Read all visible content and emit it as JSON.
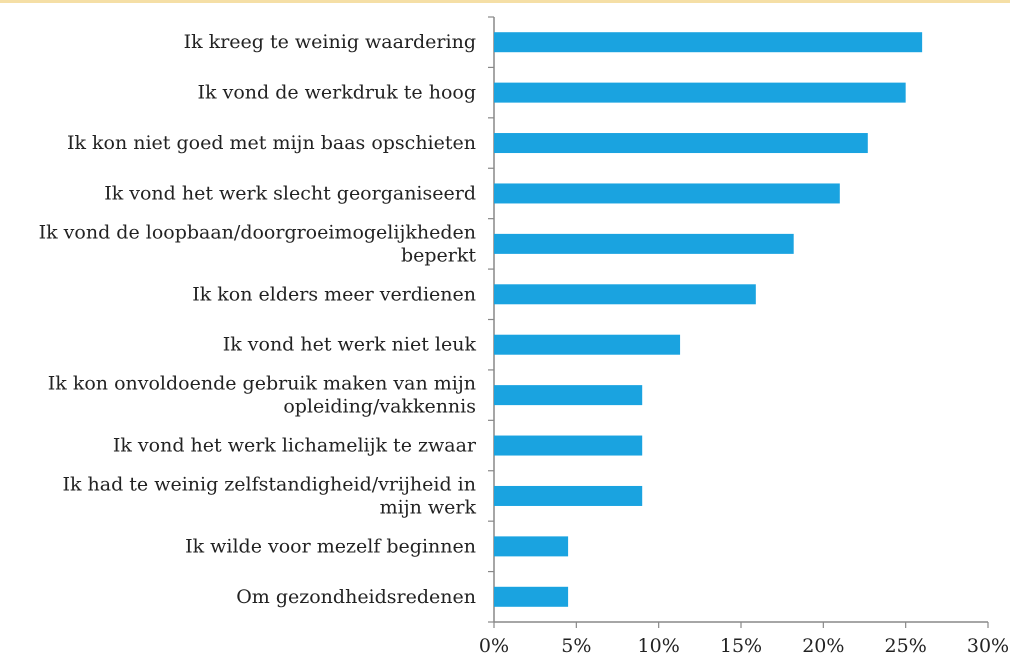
{
  "chart_data": {
    "type": "bar",
    "orientation": "horizontal",
    "categories": [
      "Ik kreeg te weinig waardering",
      "Ik vond de werkdruk te hoog",
      "Ik kon niet goed met mijn baas opschieten",
      "Ik vond het werk slecht georganiseerd",
      "Ik vond de loopbaan/doorgroeimogelijkheden beperkt",
      "Ik kon elders meer verdienen",
      "Ik vond het werk niet leuk",
      "Ik kon onvoldoende gebruik maken van mijn opleiding/vakkennis",
      "Ik vond het werk lichamelijk te zwaar",
      "Ik had te weinig zelfstandigheid/vrijheid in mijn werk",
      "Ik wilde voor mezelf beginnen",
      "Om gezondheidsredenen"
    ],
    "category_lines": [
      [
        "Ik kreeg te weinig waardering"
      ],
      [
        "Ik vond de werkdruk te hoog"
      ],
      [
        "Ik kon niet goed met mijn baas opschieten"
      ],
      [
        "Ik vond het werk slecht georganiseerd"
      ],
      [
        "Ik vond de loopbaan/doorgroeimogelijkheden",
        "beperkt"
      ],
      [
        "Ik kon elders meer verdienen"
      ],
      [
        "Ik vond het werk niet leuk"
      ],
      [
        "Ik kon onvoldoende gebruik maken van mijn",
        "opleiding/vakkennis"
      ],
      [
        "Ik vond het werk lichamelijk te zwaar"
      ],
      [
        "Ik had te weinig zelfstandigheid/vrijheid in",
        "mijn werk"
      ],
      [
        "Ik wilde voor mezelf beginnen"
      ],
      [
        "Om gezondheidsredenen"
      ]
    ],
    "values": [
      26,
      25,
      22.7,
      21,
      18.2,
      15.9,
      11.3,
      9,
      9,
      9,
      4.5,
      4.5
    ],
    "xlim": [
      0,
      30
    ],
    "xticks": [
      0,
      5,
      10,
      15,
      20,
      25,
      30
    ],
    "xtick_labels": [
      "0%",
      "5%",
      "10%",
      "15%",
      "20%",
      "25%",
      "30%"
    ],
    "bar_color": "#1aa3e0",
    "axis_color": "#888888",
    "grid": false,
    "legend": "none",
    "title": "",
    "xlabel": "",
    "ylabel": ""
  }
}
